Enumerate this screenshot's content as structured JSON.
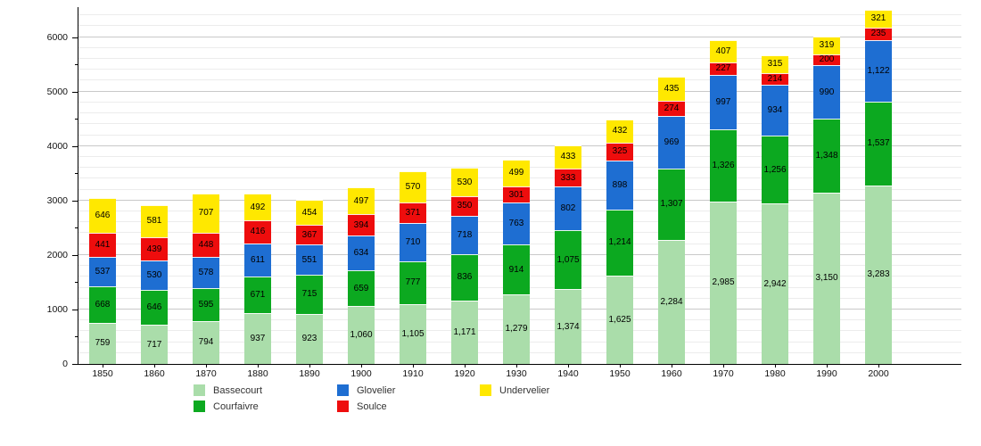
{
  "chart_data": {
    "type": "bar",
    "stacked": true,
    "title": "",
    "xlabel": "",
    "ylabel": "",
    "categories": [
      "1850",
      "1860",
      "1870",
      "1880",
      "1890",
      "1900",
      "1910",
      "1920",
      "1930",
      "1940",
      "1950",
      "1960",
      "1970",
      "1980",
      "1990",
      "2000"
    ],
    "series": [
      {
        "name": "Bassecourt",
        "color": "#aaddaa",
        "values": [
          759,
          717,
          794,
          937,
          923,
          1060,
          1105,
          1171,
          1279,
          1374,
          1625,
          2284,
          2985,
          2942,
          3150,
          3283
        ]
      },
      {
        "name": "Courfaivre",
        "color": "#0ca920",
        "values": [
          668,
          646,
          595,
          671,
          715,
          659,
          777,
          836,
          914,
          1075,
          1214,
          1307,
          1326,
          1256,
          1348,
          1537
        ]
      },
      {
        "name": "Glovelier",
        "color": "#1e6ed2",
        "values": [
          537,
          530,
          578,
          611,
          551,
          634,
          710,
          718,
          763,
          802,
          898,
          969,
          997,
          934,
          990,
          1122
        ]
      },
      {
        "name": "Soulce",
        "color": "#ee0d0d",
        "values": [
          441,
          439,
          448,
          416,
          367,
          394,
          371,
          350,
          301,
          333,
          325,
          274,
          227,
          214,
          200,
          235
        ]
      },
      {
        "name": "Undervelier",
        "color": "#ffe800",
        "values": [
          646,
          581,
          707,
          492,
          454,
          497,
          570,
          530,
          499,
          433,
          432,
          435,
          407,
          315,
          319,
          321
        ]
      }
    ],
    "ylim": [
      0,
      6550
    ],
    "y_major_tick_step": 1000,
    "y_minor_grid_step": 200,
    "y_tick_labels": [
      "0",
      "1000",
      "2000",
      "3000",
      "4000",
      "5000",
      "6000"
    ],
    "grid": true,
    "legend_position": "bottom",
    "legend_columns": [
      [
        "Bassecourt",
        "Courfaivre"
      ],
      [
        "Glovelier",
        "Soulce"
      ],
      [
        "Undervelier"
      ]
    ]
  }
}
